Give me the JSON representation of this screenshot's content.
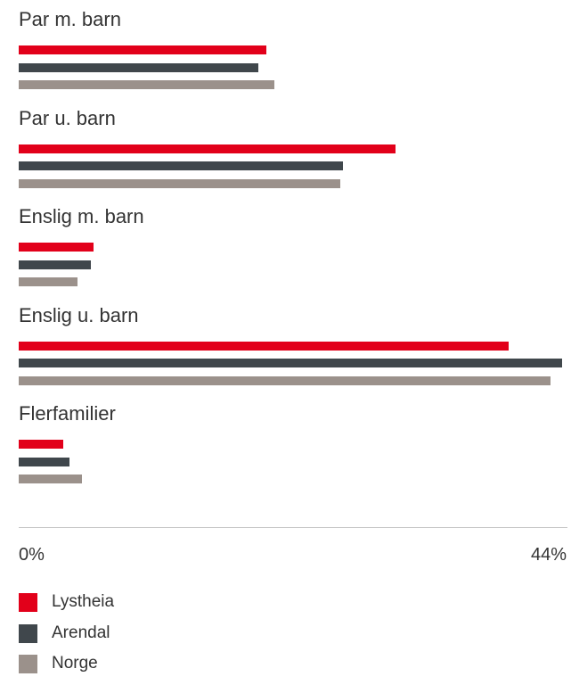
{
  "colors": {
    "Lystheia": "#e2001a",
    "Arendal": "#40474c",
    "Norge": "#9b918b",
    "axis": "#c4c4c4",
    "text": "#333333"
  },
  "chart_data": {
    "type": "bar",
    "orientation": "horizontal",
    "categories": [
      "Par m. barn",
      "Par u. barn",
      "Enslig m. barn",
      "Enslig u. barn",
      "Flerfamilier"
    ],
    "series": [
      {
        "name": "Lystheia",
        "values": [
          19.9,
          30.3,
          6.0,
          39.4,
          3.6
        ]
      },
      {
        "name": "Arendal",
        "values": [
          19.3,
          26.1,
          5.8,
          43.7,
          4.1
        ]
      },
      {
        "name": "Norge",
        "values": [
          20.6,
          25.9,
          4.7,
          42.8,
          5.1
        ]
      }
    ],
    "xlim": [
      0,
      44
    ],
    "tick_labels": [
      "0%",
      "44%"
    ],
    "legend_position": "bottom-left",
    "grid": false,
    "title": "",
    "xlabel": "",
    "ylabel": ""
  }
}
